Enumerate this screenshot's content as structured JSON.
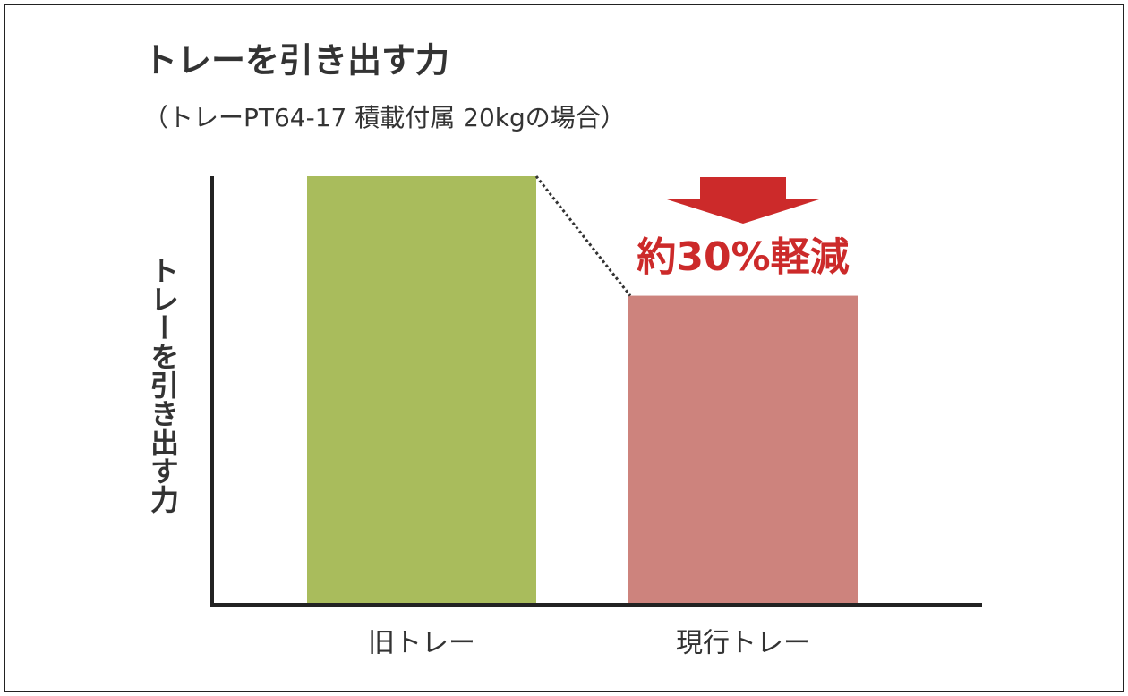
{
  "chart_data": {
    "type": "bar",
    "title": "トレーを引き出す力",
    "subtitle": "（トレーPT64-17 積載付属 20kgの場合）",
    "y_label": "トレーを引き出す力",
    "annotation": "約30%軽減",
    "categories": [
      "旧トレー",
      "現行トレー"
    ],
    "values": [
      100,
      72
    ],
    "colors": [
      "#a9bc5c",
      "#cd837d"
    ],
    "annotation_color": "#cc2a2a",
    "ylim": [
      0,
      100
    ]
  }
}
